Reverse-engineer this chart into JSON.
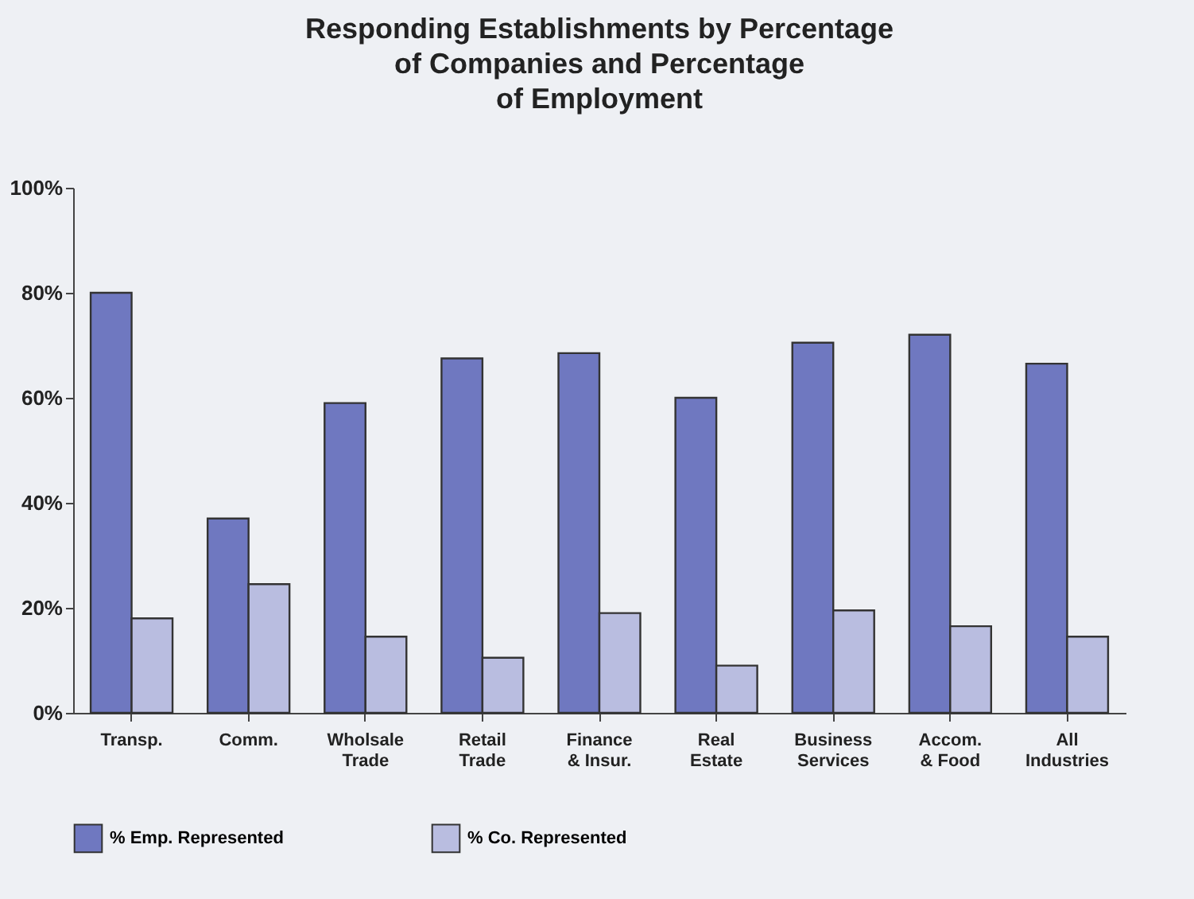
{
  "chart_data": {
    "type": "bar",
    "title": "Responding Establishments by Percentage\nof Companies and Percentage\nof Employment",
    "categories": [
      "Transp.",
      "Comm.",
      "Wholsale\nTrade",
      "Retail\nTrade",
      "Finance\n& Insur.",
      "Real\nEstate",
      "Business\nServices",
      "Accom.\n& Food",
      "All\nIndustries"
    ],
    "series": [
      {
        "name": "% Emp. Represented",
        "color": "#6f78c0",
        "values": [
          80,
          37,
          59,
          67.5,
          68.5,
          60,
          70.5,
          72,
          66.5
        ]
      },
      {
        "name": "% Co. Represented",
        "color": "#b9bde0",
        "values": [
          18,
          24.5,
          14.5,
          10.5,
          19,
          9,
          19.5,
          16.5,
          14.5
        ]
      }
    ],
    "ylim": [
      0,
      100
    ],
    "yticks": [
      {
        "value": 0,
        "label": "0%"
      },
      {
        "value": 20,
        "label": "20%"
      },
      {
        "value": 40,
        "label": "40%"
      },
      {
        "value": 60,
        "label": "60%"
      },
      {
        "value": 80,
        "label": "80%"
      },
      {
        "value": 100,
        "label": "100%"
      }
    ],
    "grid": false,
    "legend": "bottom"
  }
}
